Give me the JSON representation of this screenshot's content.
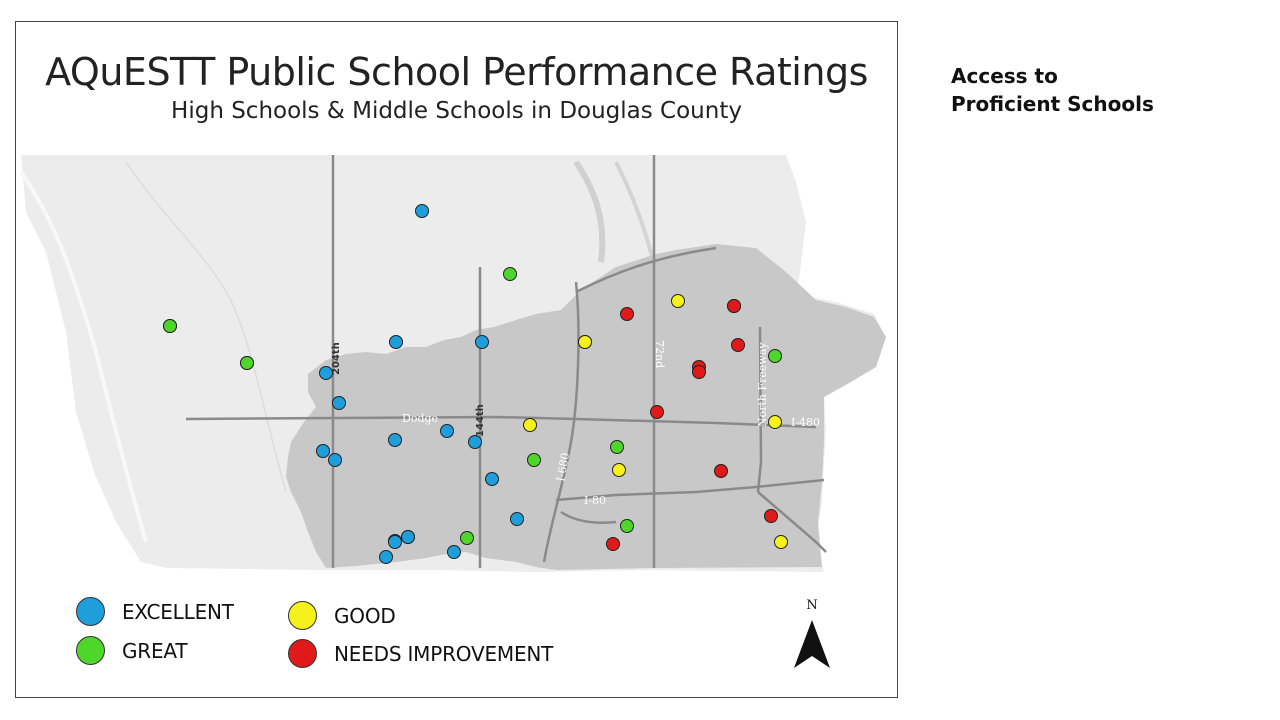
{
  "slide": {
    "side_title_line1": "Access to",
    "side_title_line2": "Proficient Schools"
  },
  "map": {
    "title": "AQuESTT Public School Performance Ratings",
    "subtitle": "High Schools & Middle Schools in Douglas County",
    "road_labels": {
      "r204": "204th",
      "r144": "144th",
      "dodge": "Dodge",
      "i680_vertical": "I-680",
      "i80": "I-80",
      "r72": "72nd",
      "north_freeway": "North Freeway",
      "i480": "I-480"
    },
    "north_label": "N",
    "colors": {
      "EXCELLENT": "#1e9fdc",
      "GREAT": "#4fd62a",
      "GOOD": "#f6f01c",
      "NEEDS IMPROVEMENT": "#e01a1a",
      "county_fill": "#c8c8c8",
      "base_fill": "#ececec",
      "road": "#8a8a8a"
    },
    "legend": [
      {
        "rating": "EXCELLENT",
        "label": "EXCELLENT"
      },
      {
        "rating": "GREAT",
        "label": "GREAT"
      },
      {
        "rating": "GOOD",
        "label": "GOOD"
      },
      {
        "rating": "NEEDS IMPROVEMENT",
        "label": "NEEDS IMPROVEMENT"
      }
    ],
    "school_ratings": {
      "EXCELLENT": 18,
      "GREAT": 10,
      "GOOD": 7,
      "NEEDS IMPROVEMENT": 10
    }
  }
}
